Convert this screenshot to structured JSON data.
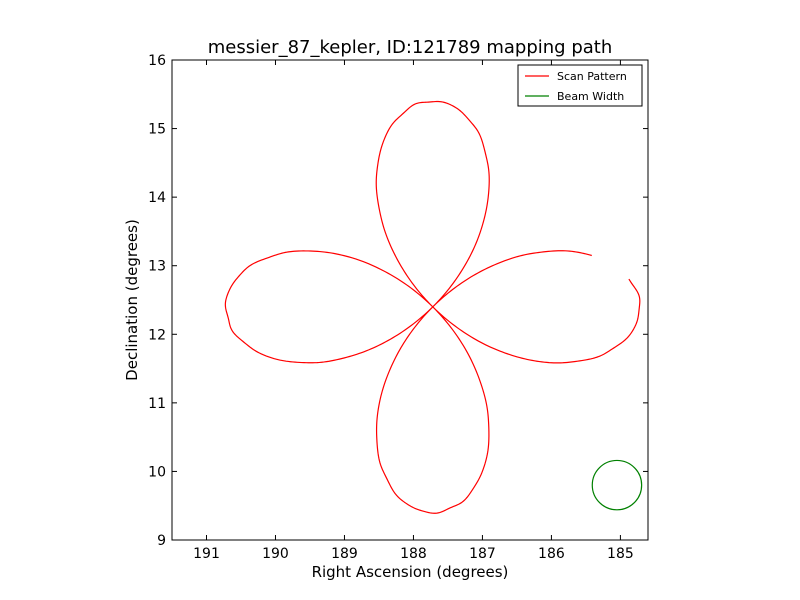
{
  "chart_data": {
    "type": "line",
    "title": "messier_87_kepler, ID:121789 mapping path",
    "xlabel": "Right Ascension (degrees)",
    "ylabel": "Declination (degrees)",
    "xlim": [
      191.5,
      184.6
    ],
    "ylim": [
      9,
      16
    ],
    "x_inverted": true,
    "xticks": [
      "191",
      "190",
      "189",
      "188",
      "187",
      "186",
      "185"
    ],
    "yticks": [
      "9",
      "10",
      "11",
      "12",
      "13",
      "14",
      "15",
      "16"
    ],
    "grid": false,
    "legend_position": "top-right",
    "series": [
      {
        "name": "Scan Pattern",
        "color": "#ff0000",
        "shape": "four-lobe rose path",
        "center": [
          187.72,
          12.4
        ],
        "lobe_extent_ra": 3.0,
        "lobe_extent_dec": 3.0,
        "start_point": [
          190.6,
          12.88
        ],
        "end_point": [
          190.8,
          12.45
        ],
        "sample_points": [
          {
            "x": 187.72,
            "y": 15.42
          },
          {
            "x": 184.6,
            "y": 12.4
          },
          {
            "x": 187.72,
            "y": 9.37
          },
          {
            "x": 190.85,
            "y": 12.4
          },
          {
            "x": 187.72,
            "y": 12.4
          }
        ]
      },
      {
        "name": "Beam Width",
        "color": "#008000",
        "shape": "circle",
        "center": [
          185.05,
          9.8
        ],
        "radius_dec": 0.36
      }
    ]
  }
}
